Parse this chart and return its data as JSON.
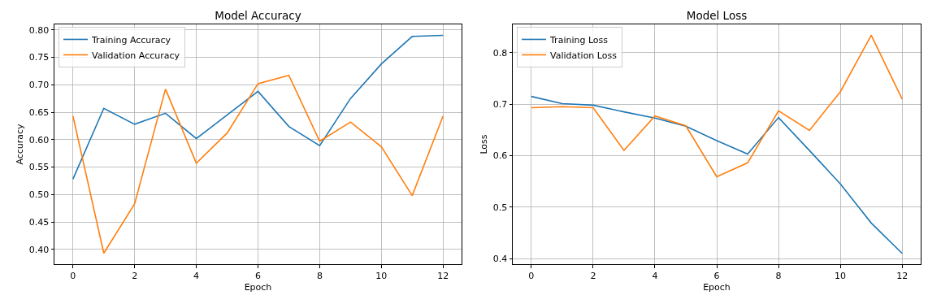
{
  "chart_data": [
    {
      "type": "line",
      "title": "Model Accuracy",
      "xlabel": "Epoch",
      "ylabel": "Accuracy",
      "x": [
        0,
        1,
        2,
        3,
        4,
        5,
        6,
        7,
        8,
        9,
        10,
        11,
        12
      ],
      "series": [
        {
          "name": "Training Accuracy",
          "color": "#1f77b4",
          "values": [
            0.528,
            0.657,
            0.628,
            0.648,
            0.602,
            0.645,
            0.688,
            0.624,
            0.589,
            0.675,
            0.738,
            0.788,
            0.79
          ]
        },
        {
          "name": "Validation Accuracy",
          "color": "#ff7f0e",
          "values": [
            0.643,
            0.393,
            0.483,
            0.692,
            0.557,
            0.612,
            0.702,
            0.717,
            0.597,
            0.632,
            0.587,
            0.498,
            0.643
          ]
        }
      ],
      "xlim": [
        -0.6,
        12.6
      ],
      "xticks": [
        0,
        2,
        4,
        6,
        8,
        10,
        12
      ],
      "ylim": [
        0.373,
        0.81
      ],
      "yticks": [
        {
          "value": 0.4,
          "label": "0.40"
        },
        {
          "value": 0.45,
          "label": "0.45"
        },
        {
          "value": 0.5,
          "label": "0.50"
        },
        {
          "value": 0.55,
          "label": "0.55"
        },
        {
          "value": 0.6,
          "label": "0.60"
        },
        {
          "value": 0.65,
          "label": "0.65"
        },
        {
          "value": 0.7,
          "label": "0.70"
        },
        {
          "value": 0.75,
          "label": "0.75"
        },
        {
          "value": 0.8,
          "label": "0.80"
        }
      ],
      "grid": true,
      "legend": "top left",
      "line_style": "solid",
      "marker": "none"
    },
    {
      "type": "line",
      "title": "Model Loss",
      "xlabel": "Epoch",
      "ylabel": "Loss",
      "x": [
        0,
        1,
        2,
        3,
        4,
        5,
        6,
        7,
        8,
        9,
        10,
        11,
        12
      ],
      "series": [
        {
          "name": "Training Loss",
          "color": "#1f77b4",
          "values": [
            0.715,
            0.701,
            0.698,
            0.685,
            0.673,
            0.657,
            0.629,
            0.603,
            0.674,
            0.61,
            0.545,
            0.469,
            0.41
          ]
        },
        {
          "name": "Validation Loss",
          "color": "#ff7f0e",
          "values": [
            0.693,
            0.695,
            0.693,
            0.61,
            0.677,
            0.658,
            0.559,
            0.586,
            0.687,
            0.649,
            0.724,
            0.834,
            0.71
          ]
        }
      ],
      "xlim": [
        -0.6,
        12.6
      ],
      "xticks": [
        0,
        2,
        4,
        6,
        8,
        10,
        12
      ],
      "ylim": [
        0.389,
        0.855
      ],
      "yticks": [
        0.4,
        0.5,
        0.6,
        0.7,
        0.8
      ],
      "grid": true,
      "legend": "top left",
      "line_style": "solid",
      "marker": "none"
    }
  ]
}
